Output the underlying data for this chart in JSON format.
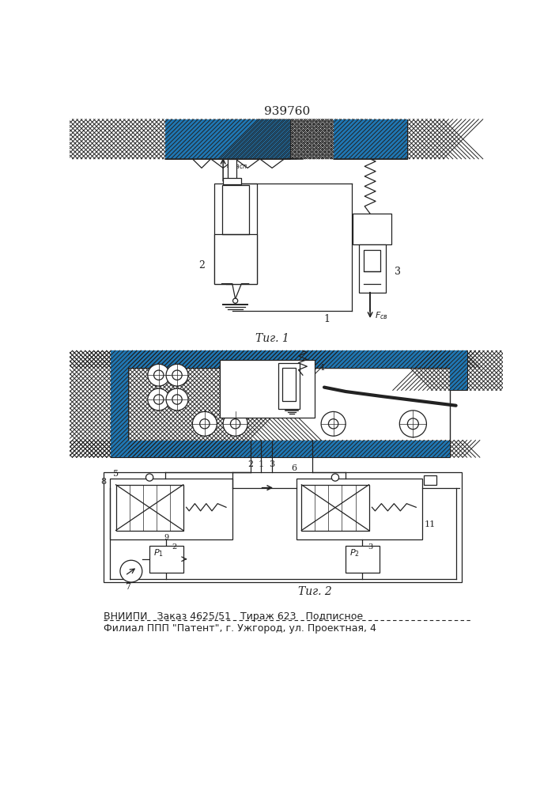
{
  "title_number": "939760",
  "fig1_label": "Τиг. 1",
  "fig2_label": "Τиг. 2",
  "footer_line1": "ВНИИПИ   Заказ 4625/51   Тираж 623   Подписное",
  "footer_line2": "Филиал ППП \"Патент\", г. Ужгород, ул. Проектная, 4",
  "bg_color": "#ffffff",
  "line_color": "#222222"
}
